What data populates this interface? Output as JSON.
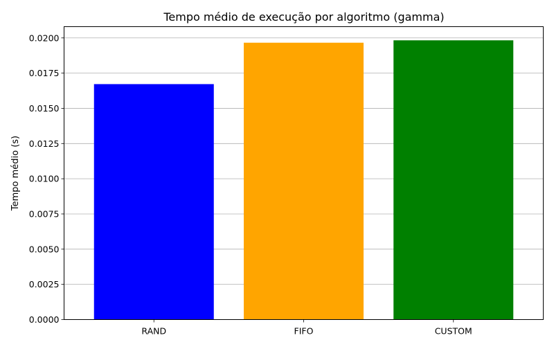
{
  "chart_data": {
    "type": "bar",
    "title": "Tempo médio de execução por algoritmo (gamma)",
    "xlabel": "",
    "ylabel": "Tempo médio (s)",
    "categories": [
      "RAND",
      "FIFO",
      "CUSTOM"
    ],
    "values": [
      0.01672,
      0.01966,
      0.01983
    ],
    "colors": [
      "#0000ff",
      "#ffa500",
      "#008000"
    ],
    "ylim": [
      0,
      0.0208
    ],
    "yticks": [
      "0.0000",
      "0.0025",
      "0.0050",
      "0.0075",
      "0.0100",
      "0.0125",
      "0.0150",
      "0.0175",
      "0.0200"
    ],
    "grid": "y-major",
    "legend": "none"
  }
}
